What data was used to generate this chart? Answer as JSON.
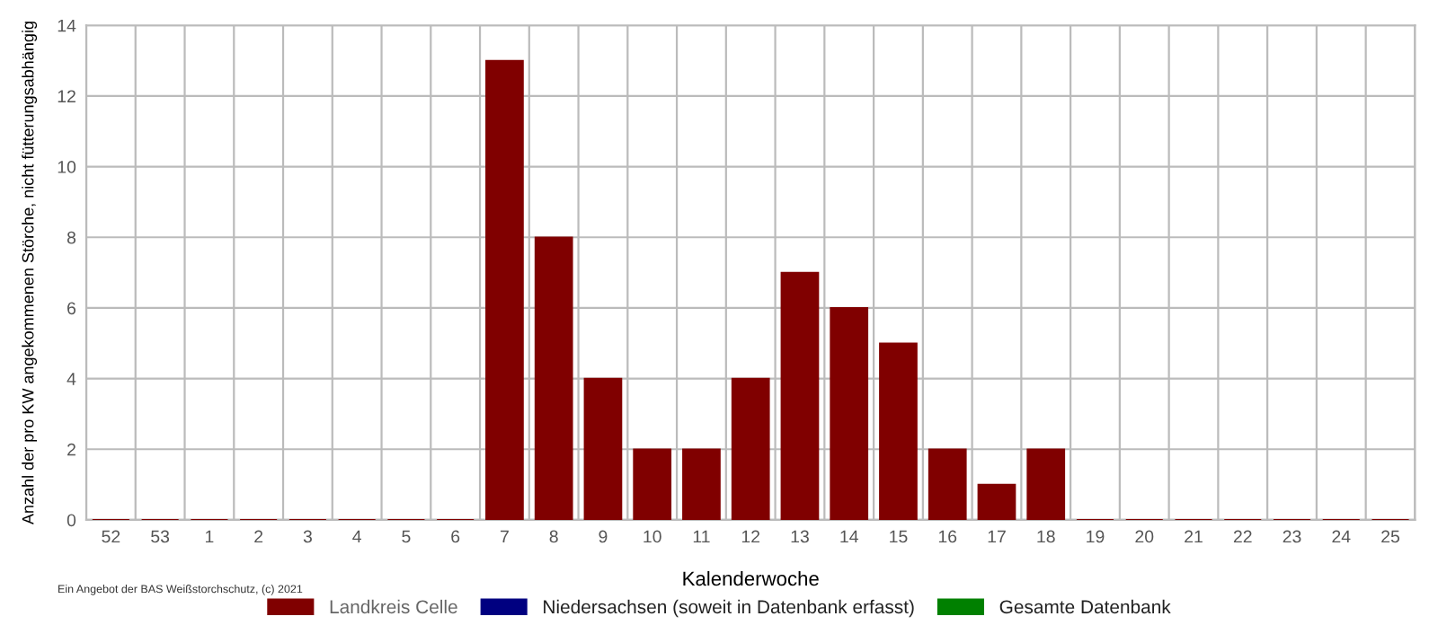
{
  "chart_data": {
    "type": "bar",
    "xlabel": "Kalenderwoche",
    "ylabel": "Anzahl der pro KW angekommenen Störche, nicht fütterungsabhängig",
    "categories": [
      "52",
      "53",
      "1",
      "2",
      "3",
      "4",
      "5",
      "6",
      "7",
      "8",
      "9",
      "10",
      "11",
      "12",
      "13",
      "14",
      "15",
      "16",
      "17",
      "18",
      "19",
      "20",
      "21",
      "22",
      "23",
      "24",
      "25"
    ],
    "series": [
      {
        "name": "Landkreis Celle",
        "color": "#800000",
        "values": [
          0,
          0,
          0,
          0,
          0,
          0,
          0,
          0,
          13,
          8,
          4,
          2,
          2,
          4,
          7,
          6,
          5,
          2,
          1,
          2,
          0,
          0,
          0,
          0,
          0,
          0,
          0
        ]
      },
      {
        "name": "Niedersachsen (soweit in Datenbank erfasst)",
        "color": "#000080",
        "values": [
          null,
          null,
          null,
          null,
          null,
          null,
          null,
          null,
          null,
          null,
          null,
          null,
          null,
          null,
          null,
          null,
          null,
          null,
          null,
          null,
          null,
          null,
          null,
          null,
          null,
          null,
          null
        ]
      },
      {
        "name": "Gesamte Datenbank",
        "color": "#008000",
        "values": [
          null,
          null,
          null,
          null,
          null,
          null,
          null,
          null,
          null,
          null,
          null,
          null,
          null,
          null,
          null,
          null,
          null,
          null,
          null,
          null,
          null,
          null,
          null,
          null,
          null,
          null,
          null
        ]
      }
    ],
    "ylim": [
      0,
      14
    ],
    "yticks": [
      0,
      2,
      4,
      6,
      8,
      10,
      12,
      14
    ],
    "grid": true,
    "legend": "bottom",
    "annotations": [
      "Ein Angebot der BAS Weißstorchschutz, (c) 2021"
    ]
  }
}
